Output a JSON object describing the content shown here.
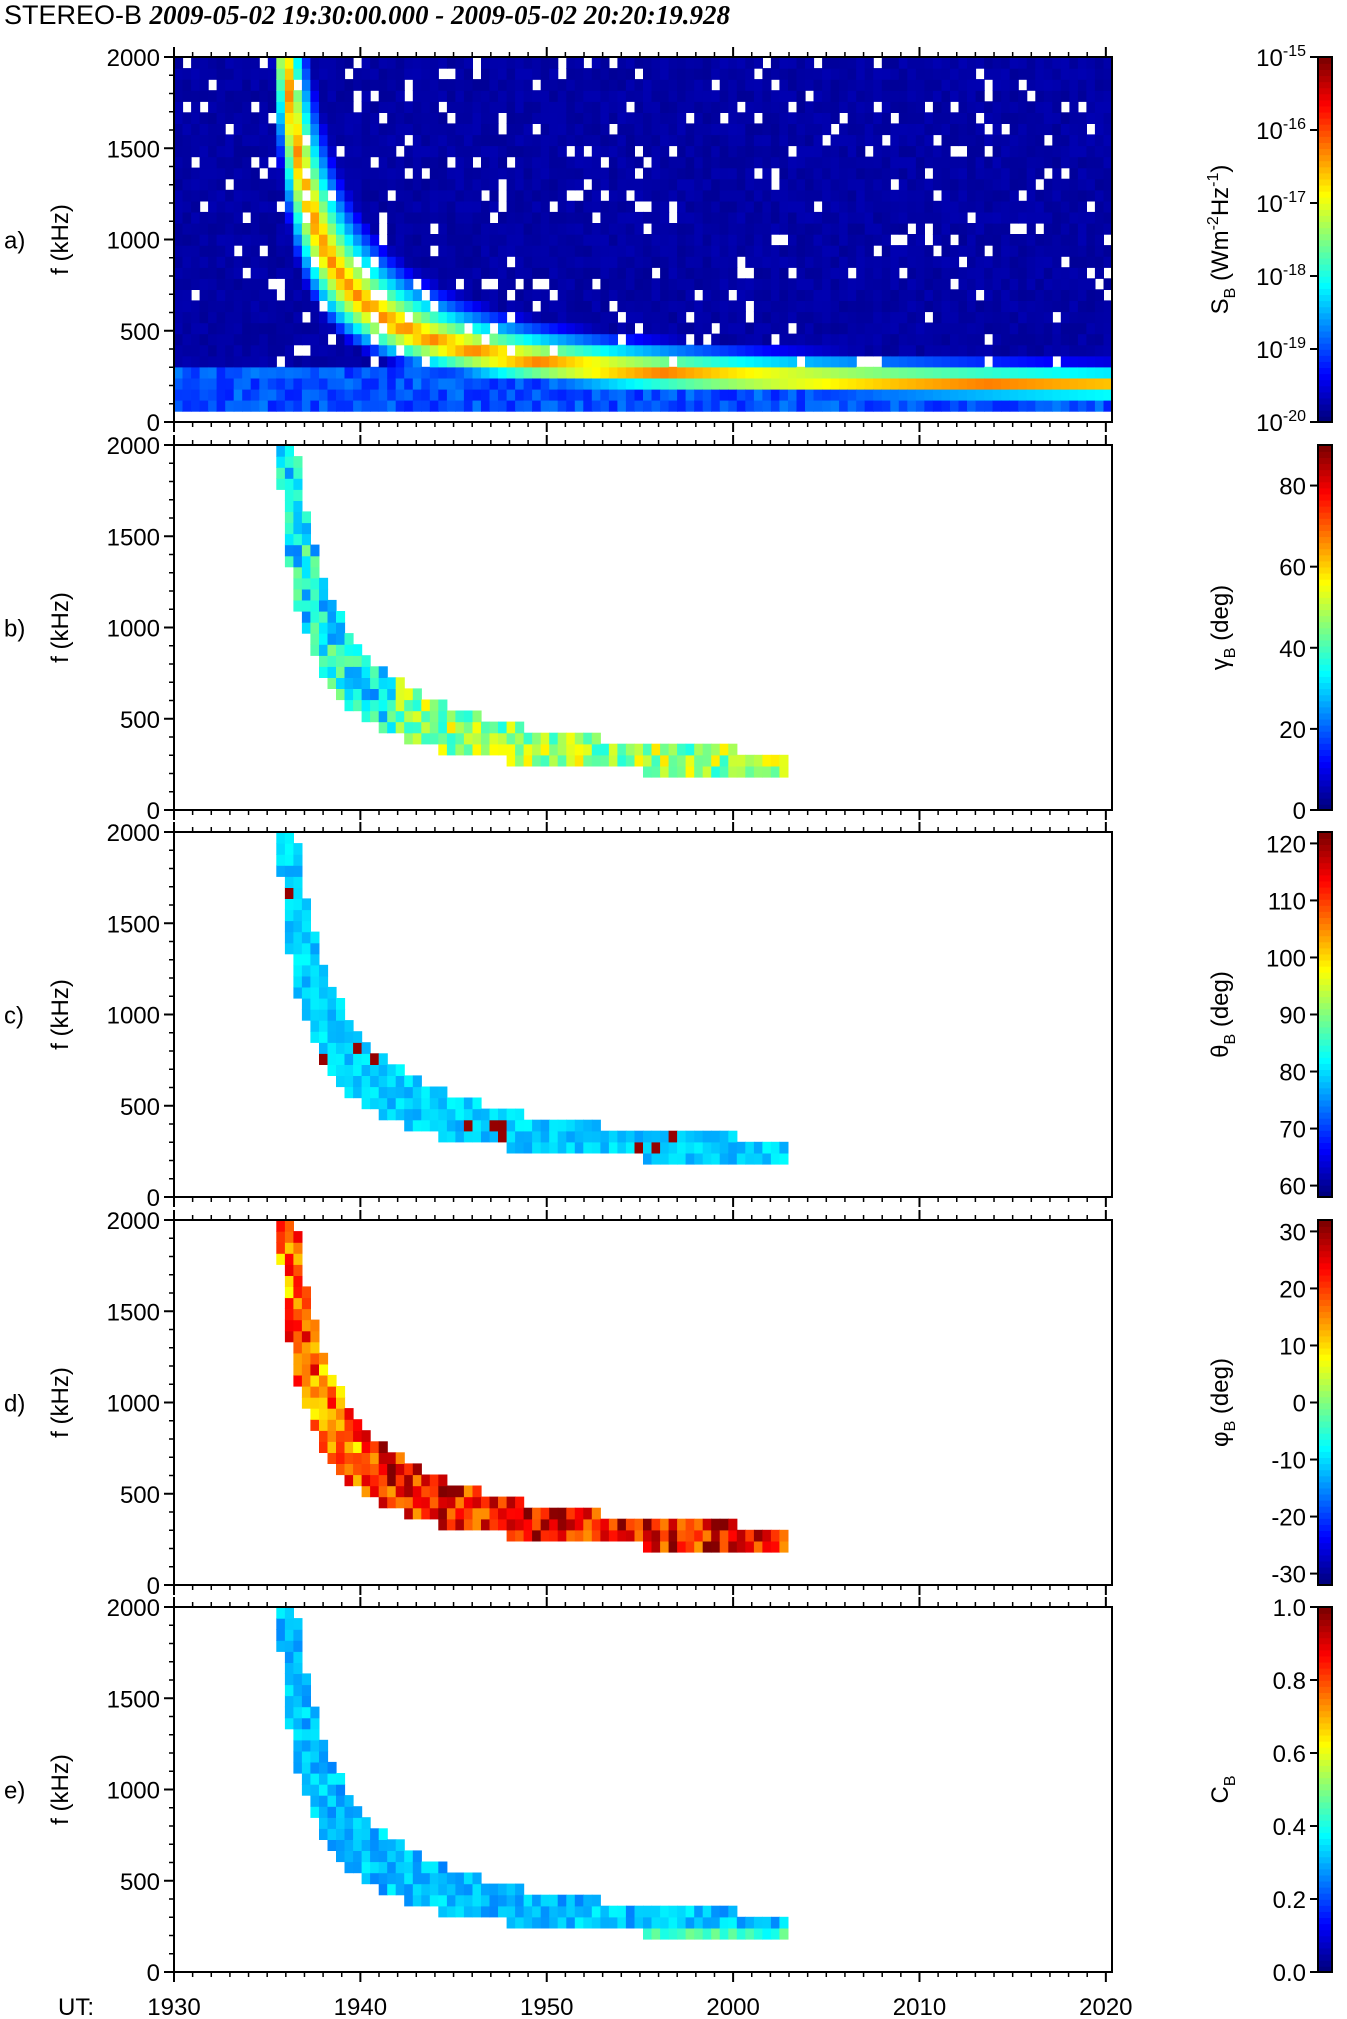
{
  "title": {
    "spacecraft": "STEREO-B",
    "time_range": "2009-05-02 19:30:00.000 - 2009-05-02 20:20:19.928"
  },
  "x_axis": {
    "label": "UT:",
    "ticks": [
      1930,
      1940,
      1950,
      2000,
      2010,
      2020
    ],
    "tick_labels": [
      "1930",
      "1940",
      "1950",
      "2000",
      "2010",
      "2020"
    ]
  },
  "chart_data": {
    "type": "heatmap",
    "description_of_units": "time in UT minutes since 19:30; frequency in kHz",
    "time_range_min": [
      0,
      50.33
    ],
    "freq_range_khz": [
      0,
      2000
    ],
    "panels": [
      {
        "id": "a",
        "panel_label": "a)",
        "ylabel": "f (kHz)",
        "yticks": [
          0,
          500,
          1000,
          1500,
          2000
        ],
        "ytick_labels": [
          "0",
          "500",
          "1000",
          "1500",
          "2000"
        ],
        "colorbar": {
          "quantity": "S_B",
          "title_main": "S",
          "title_sub": "B",
          "title_rest": " (Wm",
          "title_sup1": "-2",
          "title_mid": "Hz",
          "title_sup2": "-1",
          "title_end": ")",
          "scale": "log",
          "range": [
            1e-20,
            1e-15
          ],
          "tick_base": "10",
          "tick_exponents": [
            "-20",
            "-19",
            "-18",
            "-17",
            "-16",
            "-15"
          ],
          "colormap": "jet"
        },
        "kind": "intensity"
      },
      {
        "id": "b",
        "panel_label": "b)",
        "ylabel": "f (kHz)",
        "yticks": [
          0,
          500,
          1000,
          1500,
          2000
        ],
        "ytick_labels": [
          "0",
          "500",
          "1000",
          "1500",
          "2000"
        ],
        "colorbar": {
          "quantity": "gamma_B",
          "title_main": "γ",
          "title_sub": "B",
          "title_rest": " (deg)",
          "scale": "linear",
          "range": [
            0,
            90
          ],
          "ticks": [
            0,
            20,
            40,
            60,
            80
          ],
          "tick_labels": [
            "0",
            "20",
            "40",
            "60",
            "80"
          ],
          "colormap": "jet"
        },
        "kind": "gamma"
      },
      {
        "id": "c",
        "panel_label": "c)",
        "ylabel": "f (kHz)",
        "yticks": [
          0,
          500,
          1000,
          1500,
          2000
        ],
        "ytick_labels": [
          "0",
          "500",
          "1000",
          "1500",
          "2000"
        ],
        "colorbar": {
          "quantity": "theta_B",
          "title_main": "θ",
          "title_sub": "B",
          "title_rest": " (deg)",
          "scale": "linear",
          "range": [
            58,
            122
          ],
          "ticks": [
            60,
            70,
            80,
            90,
            100,
            110,
            120
          ],
          "tick_labels": [
            "60",
            "70",
            "80",
            "90",
            "100",
            "110",
            "120"
          ],
          "colormap": "jet"
        },
        "kind": "theta"
      },
      {
        "id": "d",
        "panel_label": "d)",
        "ylabel": "f (kHz)",
        "yticks": [
          0,
          500,
          1000,
          1500,
          2000
        ],
        "ytick_labels": [
          "0",
          "500",
          "1000",
          "1500",
          "2000"
        ],
        "colorbar": {
          "quantity": "phi_B",
          "title_main": "φ",
          "title_sub": "B",
          "title_rest": " (deg)",
          "scale": "linear",
          "range": [
            -32,
            32
          ],
          "ticks": [
            -30,
            -20,
            -10,
            0,
            10,
            20,
            30
          ],
          "tick_labels": [
            "-30",
            "-20",
            "-10",
            "0",
            "10",
            "20",
            "30"
          ],
          "colormap": "jet"
        },
        "kind": "phi"
      },
      {
        "id": "e",
        "panel_label": "e)",
        "ylabel": "f (kHz)",
        "yticks": [
          0,
          500,
          1000,
          1500,
          2000
        ],
        "ytick_labels": [
          "0",
          "500",
          "1000",
          "1500",
          "2000"
        ],
        "colorbar": {
          "quantity": "C_B",
          "title_main": "C",
          "title_sub": "B",
          "title_rest": "",
          "scale": "linear",
          "range": [
            0,
            1
          ],
          "ticks": [
            0,
            0.2,
            0.4,
            0.6,
            0.8,
            1.0
          ],
          "tick_labels": [
            "0.0",
            "0.2",
            "0.4",
            "0.6",
            "0.8",
            "1.0"
          ],
          "colormap": "jet"
        },
        "kind": "coherence"
      }
    ],
    "burst": {
      "onset_min": 4.2,
      "drift_model": "f(kHz) = 140 + 3400 / (t - onset_min)^1.05",
      "end_min": 33.0
    }
  }
}
